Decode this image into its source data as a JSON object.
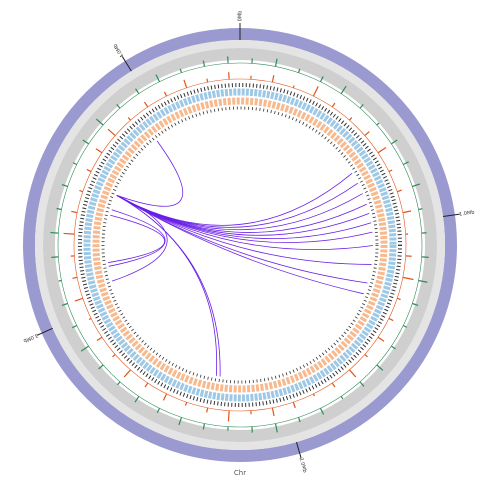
{
  "chart_data": {
    "type": "circos",
    "axis_label": "Chr",
    "xlim": [
      0,
      4.39
    ],
    "xticks": [
      {
        "value": 0,
        "label": "0Mb"
      },
      {
        "value": 1,
        "label": "1.0Mb"
      },
      {
        "value": 2,
        "label": "2.0Mb"
      },
      {
        "value": 3,
        "label": "3.0Mb"
      },
      {
        "value": 4,
        "label": "4.0Mb"
      }
    ],
    "ring_color": "#9a9ad0",
    "tracks": [
      {
        "color": "#2e8b57",
        "values": [
          0.5,
          0.8,
          0.4,
          0.6,
          0.9,
          0.5,
          0.3,
          0.7,
          0.6,
          0.8,
          0.4,
          0.5,
          0.7,
          0.9,
          0.6,
          0.4,
          0.5,
          0.8,
          0.6,
          0.3,
          0.7,
          0.5,
          0.9,
          0.6,
          0.4,
          0.6,
          0.8,
          0.5,
          0.7,
          0.4,
          0.6,
          0.9,
          0.5,
          0.6,
          0.3,
          0.7,
          0.8,
          0.5,
          0.6,
          0.4,
          0.7,
          0.9,
          0.5,
          0.6,
          0.8,
          0.4,
          0.6,
          0.7
        ]
      },
      {
        "color": "#e2541b",
        "values": [
          0.3,
          0.6,
          0.2,
          0.9,
          0.4,
          0.3,
          0.5,
          0.8,
          0.3,
          0.4,
          0.7,
          0.2,
          0.5,
          0.9,
          0.3,
          0.4,
          0.6,
          0.3,
          0.8,
          0.4,
          0.2,
          0.5,
          0.7,
          0.3,
          0.9,
          0.4,
          0.3,
          0.6,
          0.4,
          0.8,
          0.3,
          0.5,
          0.2,
          0.7,
          0.4,
          0.3,
          0.9,
          0.5,
          0.3,
          0.4,
          0.6,
          0.8,
          0.3,
          0.5,
          0.4,
          0.7,
          0.3,
          0.6
        ]
      }
    ],
    "link_color": "#6a1ee6",
    "links": [
      [
        3.56,
        0.76
      ],
      [
        3.56,
        0.82
      ],
      [
        3.56,
        0.88
      ],
      [
        3.56,
        0.93
      ],
      [
        3.56,
        0.98
      ],
      [
        3.56,
        1.03
      ],
      [
        3.56,
        1.1
      ],
      [
        3.56,
        1.2
      ],
      [
        3.56,
        1.3
      ],
      [
        3.56,
        1.36
      ],
      [
        3.56,
        0.7
      ],
      [
        3.56,
        2.3
      ],
      [
        3.56,
        2.32
      ],
      [
        3.56,
        3.92
      ],
      [
        3.56,
        3.1
      ],
      [
        3.2,
        3.45
      ],
      [
        3.18,
        3.48
      ]
    ]
  }
}
